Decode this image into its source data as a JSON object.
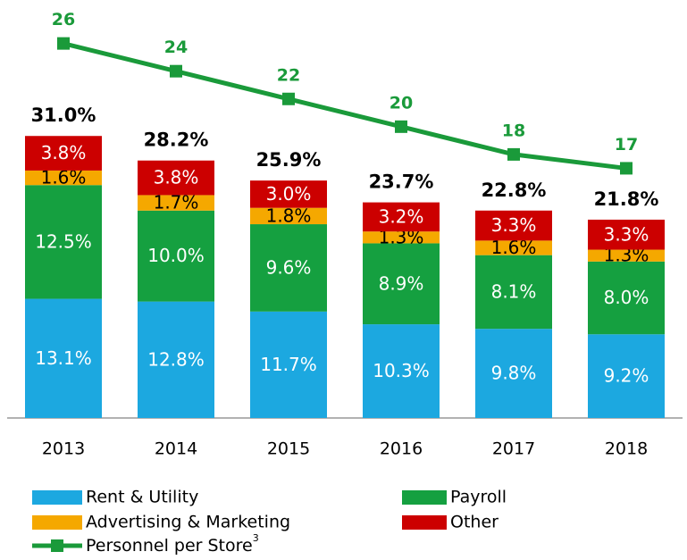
{
  "chart_data": {
    "type": "bar",
    "stacked": true,
    "categories": [
      "2013",
      "2014",
      "2015",
      "2016",
      "2017",
      "2018"
    ],
    "series": [
      {
        "name": "Rent & Utility",
        "color": "#1ca8e0",
        "label_color": "#ffffff",
        "values": [
          13.1,
          12.8,
          11.7,
          10.3,
          9.8,
          9.2
        ],
        "value_labels": [
          "13.1%",
          "12.8%",
          "11.7%",
          "10.3%",
          "9.8%",
          "9.2%"
        ]
      },
      {
        "name": "Payroll",
        "color": "#15a040",
        "label_color": "#ffffff",
        "values": [
          12.5,
          10.0,
          9.6,
          8.9,
          8.1,
          8.0
        ],
        "value_labels": [
          "12.5%",
          "10.0%",
          "9.6%",
          "8.9%",
          "8.1%",
          "8.0%"
        ]
      },
      {
        "name": "Advertising & Marketing",
        "color": "#f5a800",
        "label_color": "#000000",
        "values": [
          1.6,
          1.7,
          1.8,
          1.3,
          1.6,
          1.3
        ],
        "value_labels": [
          "1.6%",
          "1.7%",
          "1.8%",
          "1.3%",
          "1.6%",
          "1.3%"
        ]
      },
      {
        "name": "Other",
        "color": "#cc0000",
        "label_color": "#ffffff",
        "values": [
          3.8,
          3.8,
          3.0,
          3.2,
          3.3,
          3.3
        ],
        "value_labels": [
          "3.8%",
          "3.8%",
          "3.0%",
          "3.2%",
          "3.3%",
          "3.3%"
        ]
      },
      {
        "name": "Personnel per Store",
        "name_superscript": "3",
        "type": "line",
        "axis": "y2",
        "color": "#1a9a3a",
        "values": [
          26,
          24,
          22,
          20,
          18,
          17
        ]
      }
    ],
    "totals": [
      31.0,
      28.2,
      25.9,
      23.7,
      22.8,
      21.8
    ],
    "total_labels": [
      "31.0%",
      "28.2%",
      "25.9%",
      "23.7%",
      "22.8%",
      "21.8%"
    ],
    "ylim": [
      0,
      43
    ],
    "y2lim": [
      -1,
      27.2
    ]
  }
}
